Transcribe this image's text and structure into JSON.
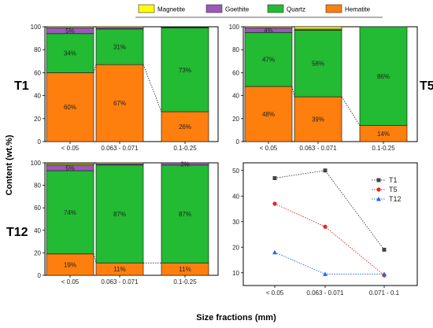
{
  "colors": {
    "Magnetite": "#ffff00",
    "Goethite": "#9b59b6",
    "Quartz": "#22bb33",
    "Hematite": "#ff7f0e",
    "T1": "#444444",
    "T5": "#ee2222",
    "T12": "#2266ee"
  },
  "legend": [
    "Magnetite",
    "Goethite",
    "Quartz",
    "Hematite"
  ],
  "ylabel": "Content (wt.%)",
  "xlabel": "Size fractions (mm)",
  "chart_data": [
    {
      "type": "bar",
      "stacked": true,
      "sample": "T1",
      "categories": [
        "< 0.05",
        "0.063 - 0.071",
        "0.1-0.25"
      ],
      "ylim": [
        0,
        100
      ],
      "yticks": [
        0,
        20,
        40,
        60,
        80,
        100
      ],
      "series": [
        {
          "name": "Hematite",
          "values": [
            60,
            67,
            26
          ],
          "labels": [
            "60%",
            "67%",
            "26%"
          ]
        },
        {
          "name": "Quartz",
          "values": [
            34,
            31,
            73
          ],
          "labels": [
            "34%",
            "31%",
            "73%"
          ]
        },
        {
          "name": "Goethite",
          "values": [
            5,
            1,
            0.5
          ],
          "labels": [
            "5%",
            "",
            ""
          ]
        },
        {
          "name": "Magnetite",
          "values": [
            1,
            1,
            0.5
          ],
          "labels": [
            "",
            "",
            ""
          ]
        }
      ]
    },
    {
      "type": "bar",
      "stacked": true,
      "sample": "T5",
      "categories": [
        "< 0.05",
        "0.063 - 0.071",
        "0.1-0.25"
      ],
      "ylim": [
        0,
        100
      ],
      "yticks": [
        0,
        20,
        40,
        60,
        80,
        100
      ],
      "series": [
        {
          "name": "Hematite",
          "values": [
            48,
            39,
            14
          ],
          "labels": [
            "48%",
            "39%",
            "14%"
          ]
        },
        {
          "name": "Quartz",
          "values": [
            47,
            58,
            86
          ],
          "labels": [
            "47%",
            "58%",
            "86%"
          ]
        },
        {
          "name": "Goethite",
          "values": [
            4,
            1,
            0
          ],
          "labels": [
            "4%",
            "",
            ""
          ]
        },
        {
          "name": "Magnetite",
          "values": [
            1,
            2,
            0
          ],
          "labels": [
            "",
            "",
            ""
          ]
        }
      ]
    },
    {
      "type": "bar",
      "stacked": true,
      "sample": "T12",
      "categories": [
        "< 0.05",
        "0.063 - 0.071",
        "0.1-0.25"
      ],
      "ylim": [
        0,
        100
      ],
      "yticks": [
        0,
        20,
        40,
        60,
        80,
        100
      ],
      "series": [
        {
          "name": "Hematite",
          "values": [
            19,
            11,
            11
          ],
          "labels": [
            "19%",
            "11%",
            "11%"
          ]
        },
        {
          "name": "Quartz",
          "values": [
            74,
            87,
            87
          ],
          "labels": [
            "74%",
            "87%",
            "87%"
          ]
        },
        {
          "name": "Goethite",
          "values": [
            5,
            1,
            2
          ],
          "labels": [
            "5%",
            "",
            "2%"
          ]
        },
        {
          "name": "Magnetite",
          "values": [
            1,
            1,
            0
          ],
          "labels": [
            "",
            "",
            ""
          ]
        }
      ]
    },
    {
      "type": "line",
      "categories": [
        "< 0.05",
        "0.063 - 0.071",
        "0.071 - 0.1"
      ],
      "ylim": [
        5,
        53
      ],
      "yticks": [
        10,
        20,
        30,
        40,
        50
      ],
      "legend_position": "top-right",
      "series": [
        {
          "name": "T1",
          "marker": "square",
          "values": [
            47,
            50,
            19
          ]
        },
        {
          "name": "T5",
          "marker": "circle",
          "values": [
            37,
            28,
            9
          ]
        },
        {
          "name": "T12",
          "marker": "triangle",
          "values": [
            18,
            9.5,
            9.5
          ]
        }
      ]
    }
  ]
}
